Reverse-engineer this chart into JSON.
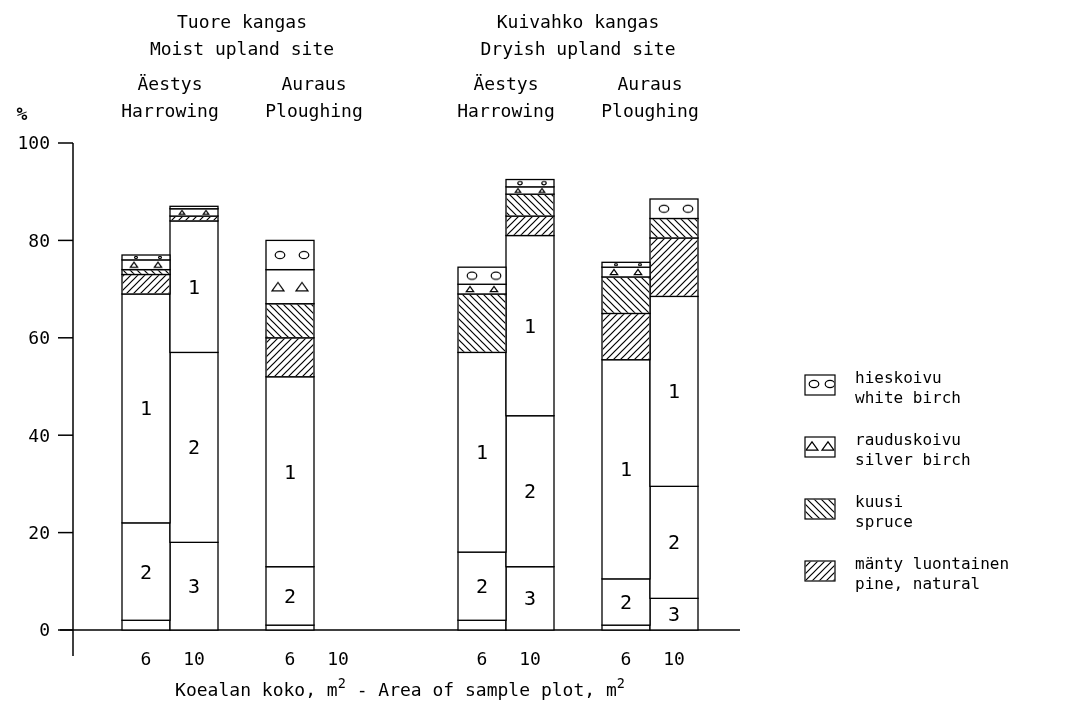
{
  "chart_data": {
    "type": "bar",
    "stacked": true,
    "xlabel": "Koealan koko, m$^{2}$ - Area of sample plot, m$^{2}$",
    "ylabel": "%",
    "categories": [
      "6",
      "10",
      "6",
      "10",
      "6",
      "10",
      "6",
      "10"
    ],
    "ylim": [
      0,
      100
    ],
    "yticks": [
      0,
      20,
      40,
      60,
      80,
      100
    ],
    "grid": false,
    "legend": "right",
    "annotations": [
      "Tuore kangas\nMoist upland site",
      "Kuivahko kangas\nDryish upland site",
      "Äestys\nHarrowing",
      "Auraus\nPloughing",
      "Äestys\nHarrowing",
      "Auraus\nPloughing"
    ],
    "series": [
      {
        "name": "3",
        "color": "#ffffff",
        "values": [
          2,
          18,
          1,
          null,
          2,
          13,
          1,
          6.5
        ]
      },
      {
        "name": "2",
        "color": "#ffffff",
        "values": [
          20,
          39,
          12,
          null,
          14,
          31,
          9.5,
          23
        ]
      },
      {
        "name": "1",
        "color": "#ffffff",
        "values": [
          47,
          27,
          39,
          null,
          41,
          37,
          45,
          39
        ]
      },
      {
        "name": "mänty luontainen\npine, natural",
        "color": "#ffffff",
        "values": [
          4,
          1,
          8,
          null,
          null,
          4,
          9.5,
          12
        ]
      },
      {
        "name": "kuusi\nspruce",
        "color": "#ffffff",
        "values": [
          1,
          null,
          7,
          null,
          12,
          4.5,
          7.5,
          4
        ]
      },
      {
        "name": "rauduskoivu\nsilver birch",
        "color": "#ffffff",
        "values": [
          2,
          1.5,
          7,
          null,
          2,
          1.5,
          2,
          null
        ]
      },
      {
        "name": "hieskoivu\nwhite birch",
        "color": "#ffffff",
        "values": [
          1,
          0.5,
          6,
          null,
          3.5,
          1.5,
          1,
          4
        ]
      }
    ]
  }
}
